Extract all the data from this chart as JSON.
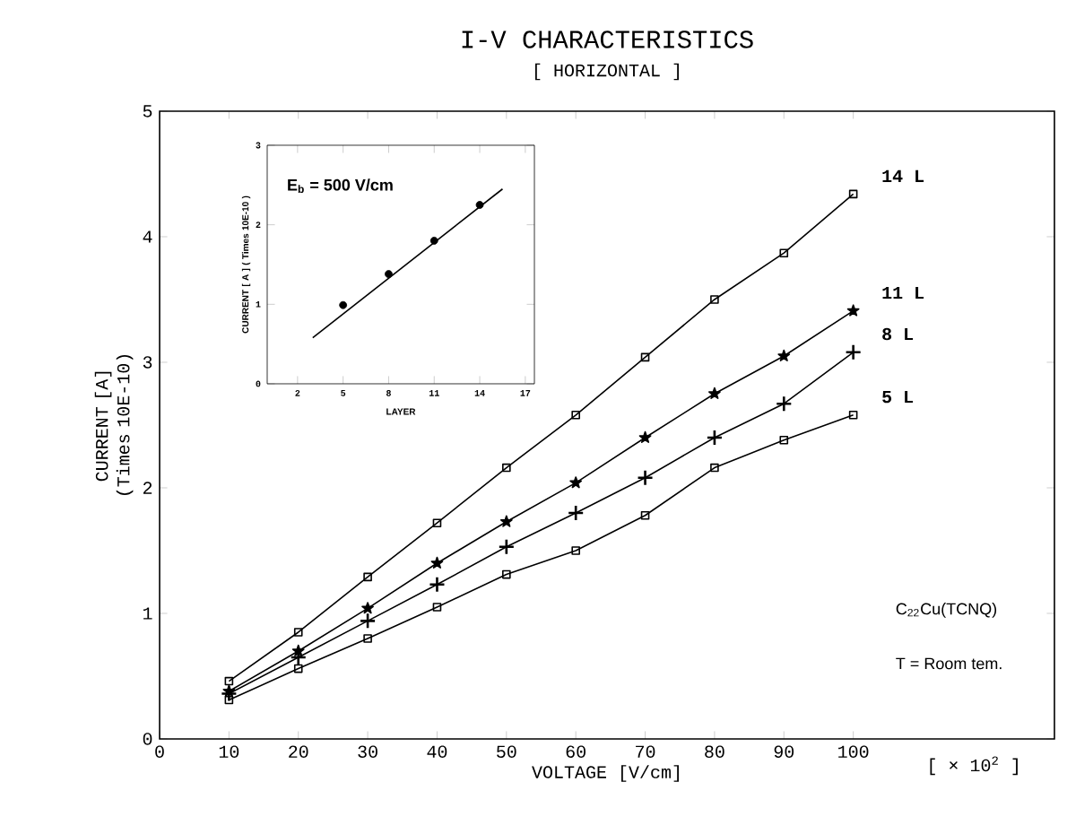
{
  "chart_data": [
    {
      "type": "line",
      "title": "I-V CHARACTERISTICS",
      "subtitle": "[ HORIZONTAL ]",
      "xlabel": "VOLTAGE [V/cm]",
      "ylabel": "CURRENT [A] (Times 10E-10)",
      "x": [
        10,
        20,
        30,
        40,
        50,
        60,
        70,
        80,
        90,
        100
      ],
      "xlim": [
        0,
        129
      ],
      "xticks": [
        0,
        10,
        20,
        30,
        40,
        50,
        60,
        70,
        80,
        90,
        100
      ],
      "ylim": [
        0,
        5
      ],
      "yticks": [
        0,
        1,
        2,
        3,
        4,
        5
      ],
      "series": [
        {
          "name": "14 L",
          "color": "#000000",
          "marker": "square",
          "values": [
            0.46,
            0.85,
            1.29,
            1.72,
            2.16,
            2.58,
            3.04,
            3.5,
            3.87,
            4.34
          ]
        },
        {
          "name": "11 L",
          "color": "#000000",
          "marker": "star",
          "values": [
            0.38,
            0.7,
            1.04,
            1.4,
            1.73,
            2.04,
            2.4,
            2.75,
            3.05,
            3.41
          ]
        },
        {
          "name": "8 L",
          "color": "#000000",
          "marker": "cross",
          "values": [
            0.36,
            0.65,
            0.94,
            1.23,
            1.53,
            1.8,
            2.08,
            2.4,
            2.67,
            3.08
          ]
        },
        {
          "name": "5 L",
          "color": "#000000",
          "marker": "square",
          "values": [
            0.31,
            0.56,
            0.8,
            1.05,
            1.31,
            1.5,
            1.78,
            2.16,
            2.38,
            2.58
          ]
        }
      ],
      "annotations": [
        "[ × 10$^{2}$ ]",
        "C$_{22}$Cu(TCNQ)",
        "T = Room tem."
      ],
      "line_style": "solid"
    },
    {
      "type": "scatter",
      "xlabel": "LAYER",
      "ylabel": "CURRENT [ A ] ( Times 10E-10 )",
      "x": [
        5,
        8,
        11,
        14
      ],
      "xlim": [
        0,
        17.6
      ],
      "xticks": [
        2,
        5,
        8,
        11,
        14,
        17
      ],
      "ylim": [
        0,
        3
      ],
      "yticks": [
        0,
        1,
        2,
        3
      ],
      "series": [
        {
          "color": "#000000",
          "marker": "circle",
          "values": [
            0.99,
            1.38,
            1.8,
            2.25
          ]
        },
        {
          "type": "line",
          "color": "#000000",
          "marker": "none",
          "x": [
            3,
            15.5
          ],
          "values": [
            0.58,
            2.45
          ]
        }
      ],
      "annotations": [
        "E$_{b}$ = 500 V/cm"
      ]
    }
  ]
}
